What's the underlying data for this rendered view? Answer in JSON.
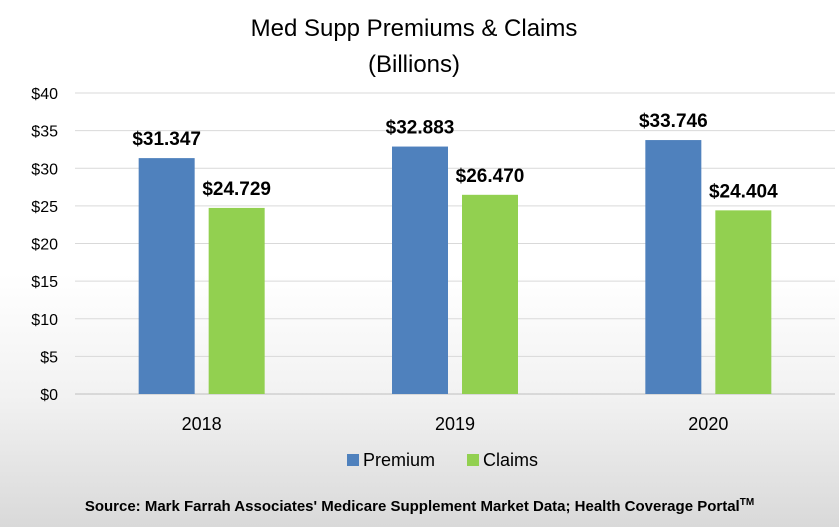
{
  "chart_data": {
    "type": "bar",
    "title": "Med Supp Premiums & Claims",
    "subtitle": "(Billions)",
    "categories": [
      "2018",
      "2019",
      "2020"
    ],
    "series": [
      {
        "name": "Premium",
        "color": "#4f81bd",
        "values": [
          31.347,
          32.883,
          33.746
        ],
        "labels": [
          "$31.347",
          "$32.883",
          "$33.746"
        ]
      },
      {
        "name": "Claims",
        "color": "#92d050",
        "values": [
          24.729,
          26.47,
          24.404
        ],
        "labels": [
          "$24.729",
          "$26.470",
          "$24.404"
        ]
      }
    ],
    "yticks": [
      0,
      5,
      10,
      15,
      20,
      25,
      30,
      35,
      40
    ],
    "ytick_labels": [
      "$0",
      "$5",
      "$10",
      "$15",
      "$20",
      "$25",
      "$30",
      "$35",
      "$40"
    ],
    "ylim": [
      0,
      40
    ],
    "grid": true,
    "legend_position": "bottom",
    "xlabel": "",
    "ylabel": ""
  },
  "footer": {
    "source_text": "Source:  Mark Farrah Associates' Medicare Supplement Market Data; Health Coverage Portal",
    "source_sup": "TM"
  }
}
